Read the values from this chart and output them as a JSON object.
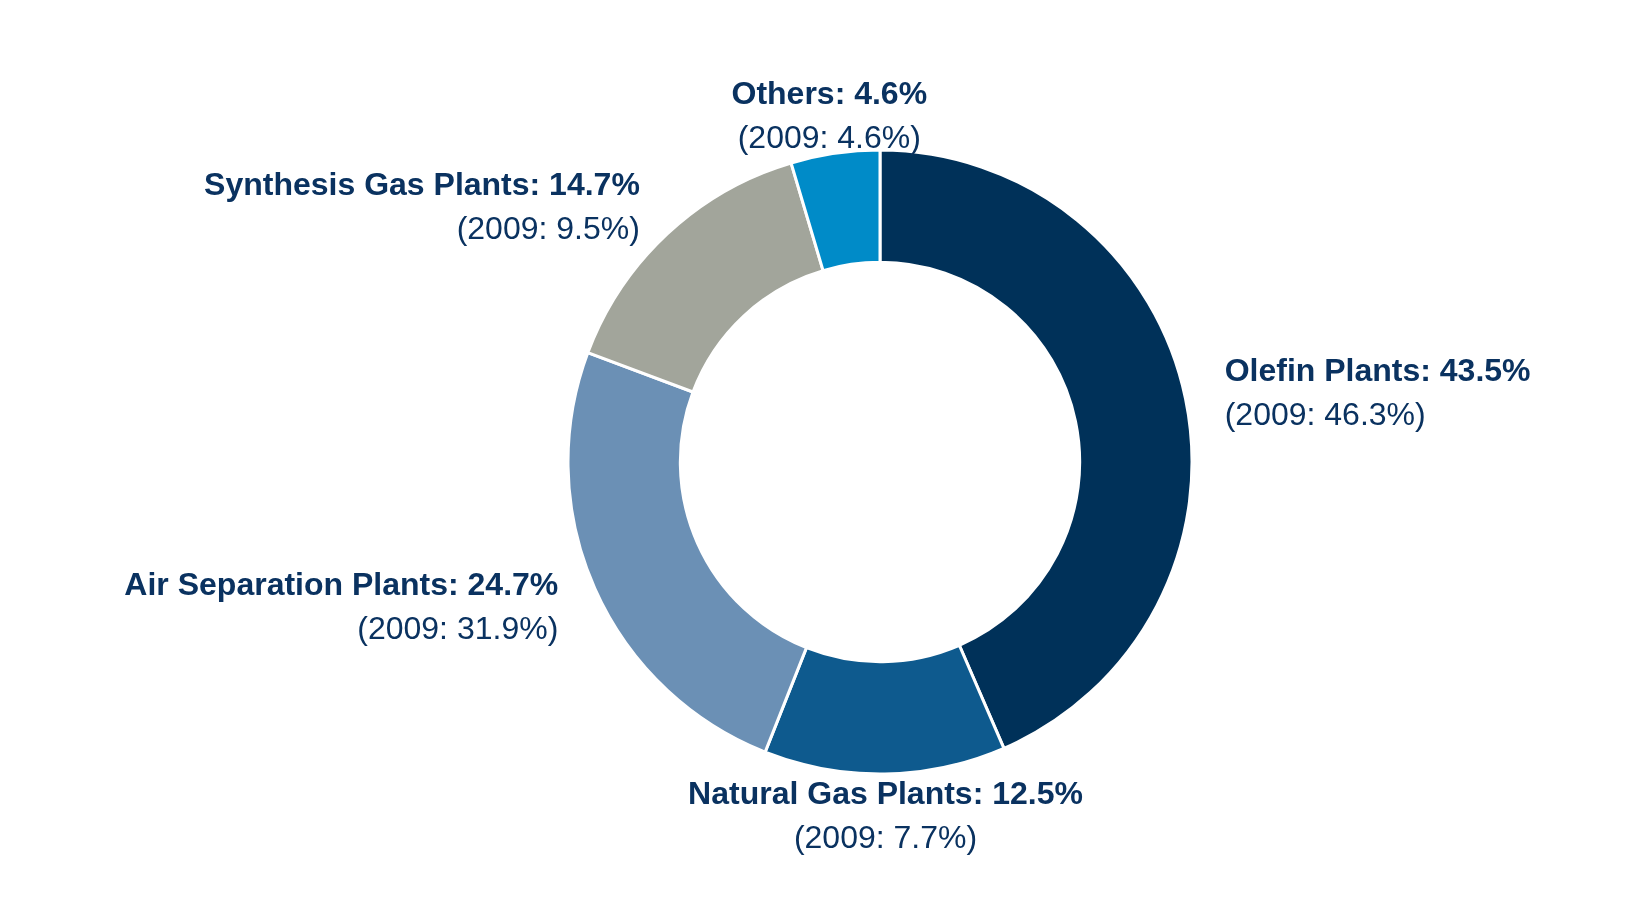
{
  "chart_data": {
    "type": "donut",
    "categories": [
      "Olefin Plants",
      "Natural Gas Plants",
      "Air Separation Plants",
      "Synthesis Gas Plants",
      "Others"
    ],
    "values": [
      43.5,
      12.5,
      24.7,
      14.7,
      4.6
    ],
    "colors": [
      "#003159",
      "#0e5a8e",
      "#6b90b5",
      "#a2a59b",
      "#008bc8"
    ],
    "value_labels": [
      "43.5%",
      "12.5%",
      "24.7%",
      "14.7%",
      "4.6%"
    ],
    "annotations": [
      "(2009: 46.3%)",
      "(2009: 7.7%)",
      "(2009: 31.9%)",
      "(2009: 9.5%)",
      "(2009: 4.6%)"
    ]
  }
}
